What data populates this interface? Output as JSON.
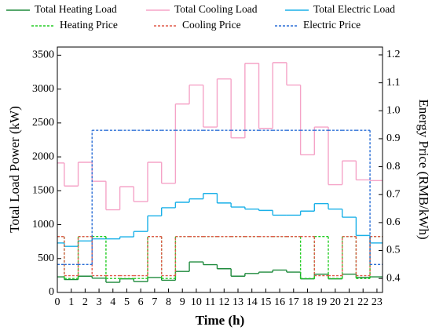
{
  "chart_data": {
    "type": "step",
    "xlabel": "Time (h)",
    "ylabel": "Total Load Power (kW)",
    "y2label": "Energy Price (RMB/kWh)",
    "xlim": [
      0,
      23.4
    ],
    "xticks": [
      0,
      1,
      2,
      3,
      4,
      5,
      6,
      7,
      8,
      9,
      10,
      11,
      12,
      13,
      14,
      15,
      16,
      17,
      18,
      19,
      20,
      21,
      22,
      23
    ],
    "ylim": [
      0,
      3620
    ],
    "yticks": [
      0,
      500,
      1000,
      1500,
      2000,
      2500,
      3000,
      3500
    ],
    "y2lim": [
      0.35,
      1.228
    ],
    "y2ticks": [
      0.4,
      0.5,
      0.6,
      0.7,
      0.8,
      0.9,
      {
        "value": 1.0,
        "label": "1.0"
      },
      1.1,
      1.2
    ],
    "x": [
      0,
      1,
      2,
      3,
      4,
      5,
      6,
      7,
      8,
      9,
      10,
      11,
      12,
      13,
      14,
      15,
      16,
      17,
      18,
      19,
      20,
      21,
      22,
      23
    ],
    "series": [
      {
        "name": "Total Heating Load",
        "color": "#1e8a3c",
        "dashed": false,
        "values": [
          230,
          190,
          240,
          210,
          150,
          200,
          160,
          220,
          180,
          310,
          450,
          410,
          350,
          240,
          280,
          300,
          330,
          300,
          200,
          270,
          200,
          270,
          220,
          230
        ]
      },
      {
        "name": "Total Cooling Load",
        "color": "#f5a3c7",
        "dashed": false,
        "values": [
          1910,
          1570,
          1920,
          1640,
          1220,
          1560,
          1340,
          1920,
          1610,
          2780,
          3060,
          2440,
          3150,
          2280,
          3380,
          2420,
          3390,
          3060,
          2030,
          2440,
          1590,
          1940,
          1660,
          1650
        ]
      },
      {
        "name": "Total Electric Load",
        "color": "#1ab0e8",
        "dashed": false,
        "values": [
          730,
          680,
          760,
          790,
          790,
          820,
          900,
          1130,
          1250,
          1330,
          1380,
          1460,
          1320,
          1260,
          1230,
          1210,
          1140,
          1140,
          1200,
          1310,
          1230,
          1110,
          840,
          730
        ]
      },
      {
        "name": "Heating Price",
        "color": "#22cc22",
        "dashed": true,
        "axis": "y2",
        "values": [
          0.55,
          0.4,
          0.55,
          0.55,
          0.4,
          0.4,
          0.4,
          0.55,
          0.4,
          0.55,
          0.55,
          0.55,
          0.55,
          0.55,
          0.55,
          0.55,
          0.55,
          0.55,
          0.4,
          0.55,
          0.4,
          0.55,
          0.4,
          0.55
        ]
      },
      {
        "name": "Cooling Price",
        "color": "#e05a4a",
        "dashed": true,
        "axis": "y2",
        "values": [
          0.55,
          0.41,
          0.55,
          0.41,
          0.41,
          0.41,
          0.41,
          0.55,
          0.41,
          0.55,
          0.55,
          0.55,
          0.55,
          0.55,
          0.55,
          0.55,
          0.55,
          0.55,
          0.55,
          0.41,
          0.41,
          0.55,
          0.41,
          0.55
        ]
      },
      {
        "name": "Electric Price",
        "color": "#2b6fd6",
        "dashed": true,
        "axis": "y2",
        "values": [
          0.45,
          0.45,
          0.45,
          0.93,
          0.93,
          0.93,
          0.93,
          0.93,
          0.93,
          0.93,
          0.93,
          0.93,
          0.93,
          0.93,
          0.93,
          0.93,
          0.93,
          0.93,
          0.93,
          0.93,
          0.93,
          0.93,
          0.93,
          0.45
        ]
      }
    ]
  }
}
